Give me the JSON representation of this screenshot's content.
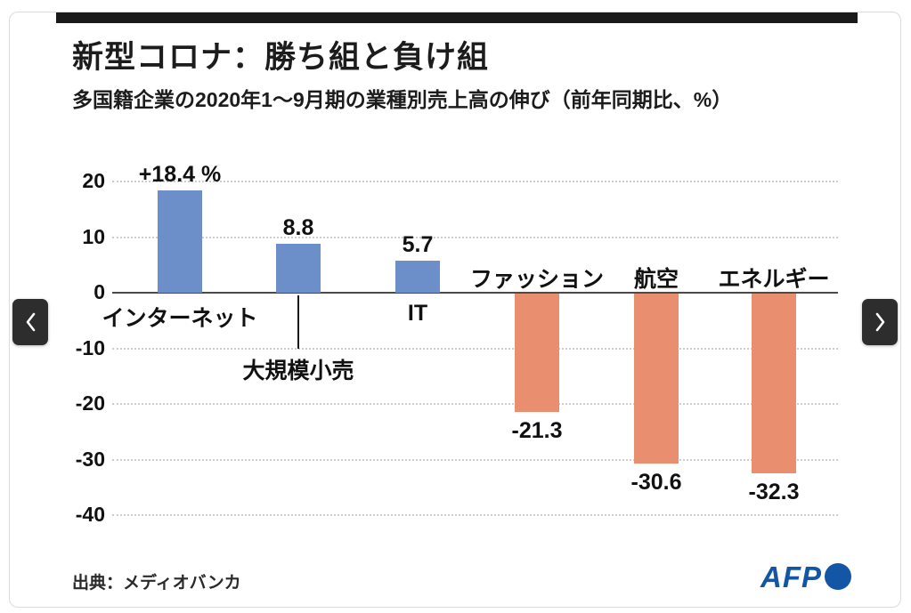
{
  "header": {
    "title": "新型コロナ：勝ち組と負け組",
    "subtitle": "多国籍企業の2020年1〜9月期の業種別売上高の伸び（前年同期比、%）"
  },
  "footer": {
    "source": "出典：メディオバンカ",
    "afp_logo_text": "AFP"
  },
  "carousel": {
    "prev_icon": "chevron-left",
    "next_icon": "chevron-right"
  },
  "colors": {
    "positive_bar": "#6c8ec9",
    "negative_bar": "#e98e6e",
    "topbar": "#1a1a1a",
    "grid": "#cccccc",
    "zero_axis": "#4a4a4a",
    "afp_blue": "#1356a5",
    "nav_button": "#2d2d2d"
  },
  "chart_data": {
    "type": "bar",
    "title": "新型コロナ：勝ち組と負け組",
    "subtitle": "多国籍企業の2020年1〜9月期の業種別売上高の伸び（前年同期比、%）",
    "categories": [
      "インターネット",
      "大規模小売",
      "IT",
      "ファッション",
      "航空",
      "エネルギー"
    ],
    "values": [
      18.4,
      8.8,
      5.7,
      -21.3,
      -30.6,
      -32.3
    ],
    "value_labels": [
      "+18.4 %",
      "8.8",
      "5.7",
      "-21.3",
      "-30.6",
      "-32.3"
    ],
    "yticks": [
      20,
      10,
      0,
      -10,
      -20,
      -30,
      -40
    ],
    "ylim": [
      -40,
      20
    ],
    "xlabel": "",
    "ylabel": "",
    "grid": true,
    "legend": false,
    "positive_color": "#6c8ec9",
    "negative_color": "#e98e6e"
  }
}
